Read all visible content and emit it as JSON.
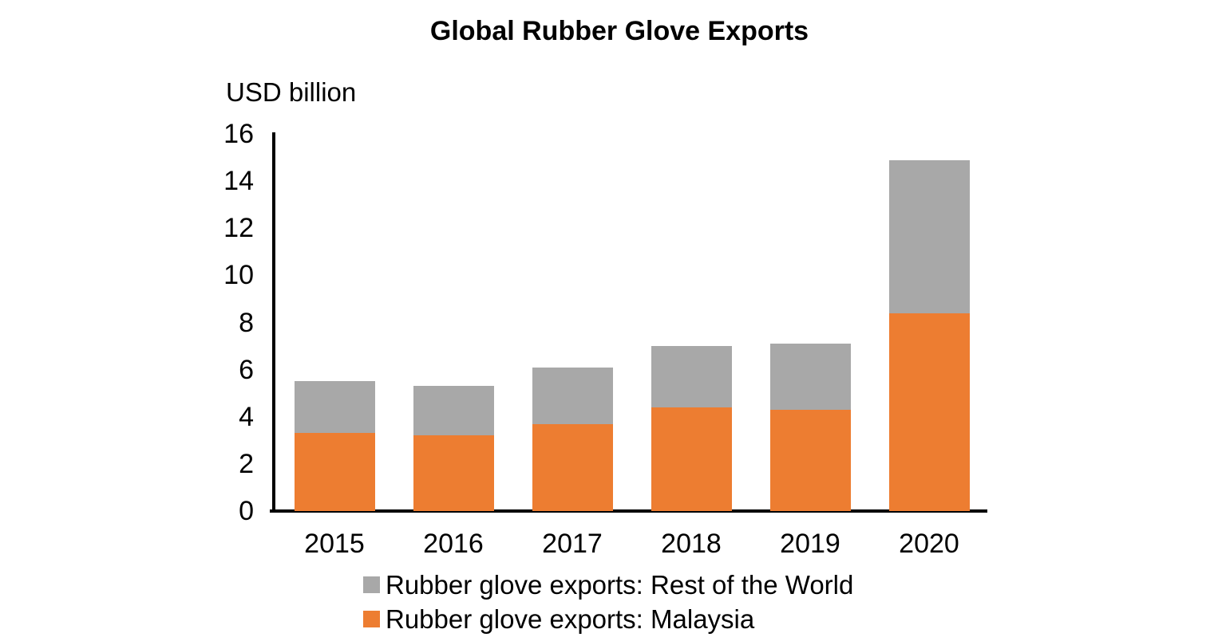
{
  "title": "Global Rubber Glove Exports",
  "y_axis": {
    "unit_label": "USD billion"
  },
  "legend": [
    {
      "label": "Rubber glove exports: Rest of the World",
      "color": "#A8A8A8",
      "key": "rest-of-world"
    },
    {
      "label": "Rubber glove exports: Malaysia",
      "color": "#ED7D31",
      "key": "malaysia"
    }
  ],
  "colors": {
    "malaysia_orange": "#ED7D31",
    "rest_of_world_gray": "#A8A8A8",
    "axis_black": "#000000",
    "background": "#FFFFFF"
  },
  "chart_data": {
    "type": "bar",
    "stacked": true,
    "title": "Global Rubber Glove Exports",
    "xlabel": "",
    "ylabel": "USD billion",
    "categories": [
      "2015",
      "2016",
      "2017",
      "2018",
      "2019",
      "2020"
    ],
    "series": [
      {
        "name": "Rubber glove exports: Malaysia",
        "key": "malaysia",
        "color": "#ED7D31",
        "values": [
          3.3,
          3.2,
          3.7,
          4.4,
          4.3,
          8.4
        ]
      },
      {
        "name": "Rubber glove exports: Rest of the World",
        "key": "rest-of-world",
        "color": "#A8A8A8",
        "values": [
          2.2,
          2.1,
          2.4,
          2.6,
          2.8,
          6.5
        ]
      }
    ],
    "stack_totals": [
      5.5,
      5.3,
      6.1,
      7.0,
      7.1,
      14.9
    ],
    "ylim": [
      0,
      16
    ],
    "y_ticks": [
      0,
      2,
      4,
      6,
      8,
      10,
      12,
      14,
      16
    ],
    "grid": false,
    "legend_position": "bottom-left"
  }
}
